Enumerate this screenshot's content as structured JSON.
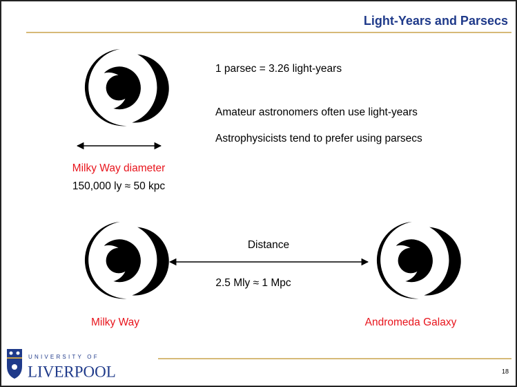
{
  "header": {
    "title": "Light-Years and Parsecs"
  },
  "body": {
    "definition": "1 parsec = 3.26 light-years",
    "notes": [
      "Amateur astronomers often use light-years",
      "Astrophysicists tend to prefer using parsecs"
    ]
  },
  "diagram": {
    "diameter_label": "Milky Way diameter",
    "diameter_value": "150,000 ly ≈ 50 kpc",
    "distance_label": "Distance",
    "distance_value": "2.5 Mly ≈ 1 Mpc",
    "galaxy_left": "Milky Way",
    "galaxy_right": "Andromeda Galaxy"
  },
  "footer": {
    "logo_top": "UNIVERSITY OF",
    "logo_bottom": "LIVERPOOL",
    "page_number": "18"
  }
}
